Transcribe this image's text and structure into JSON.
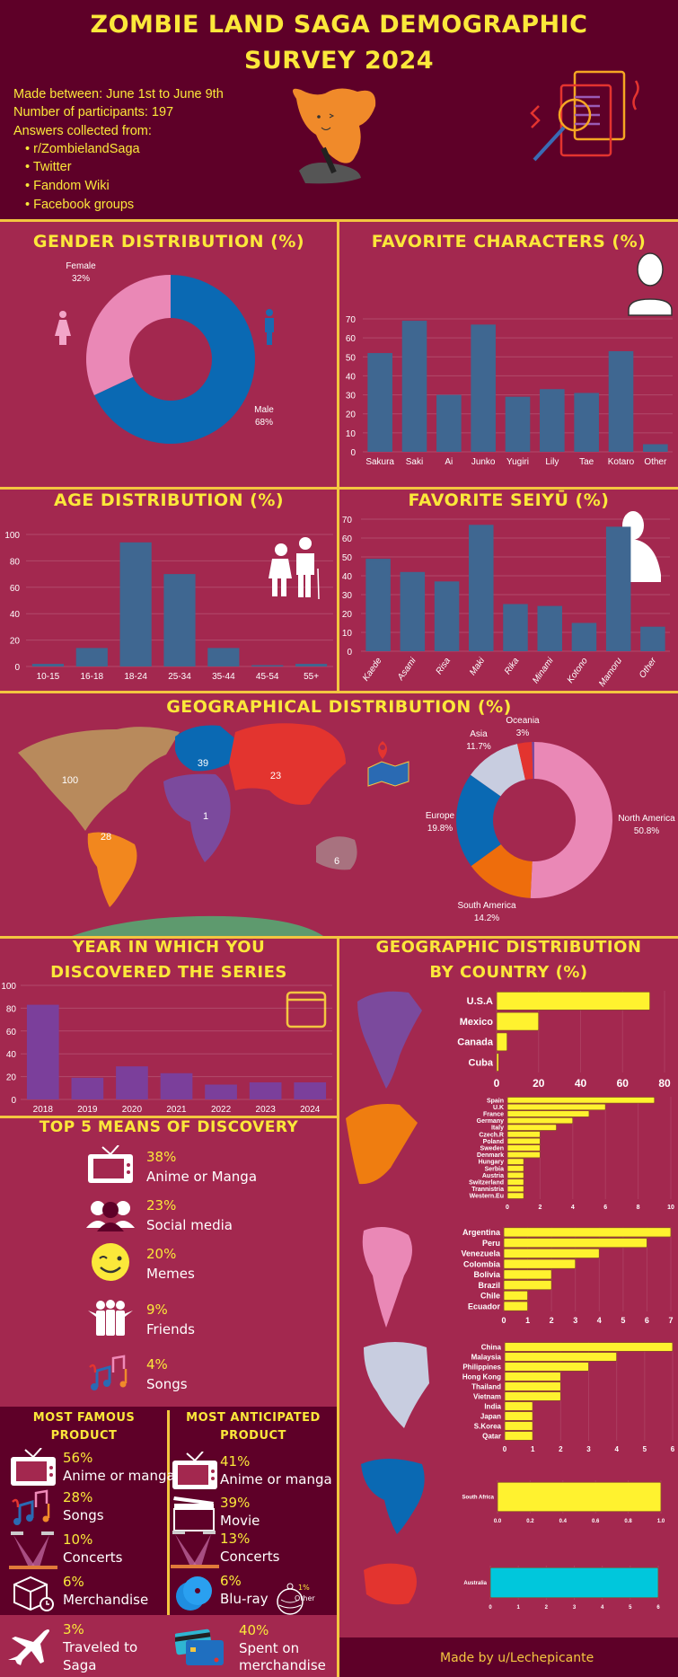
{
  "header": {
    "title_line1": "ZOMBIE LAND SAGA DEMOGRAPHIC",
    "title_line2": "SURVEY 2024",
    "made_between": "Made between: June 1st to June 9th",
    "participants": "Number of participants: 197",
    "collected_from": "Answers collected from:",
    "sources": [
      "r/ZombielandSaga",
      "Twitter",
      "Fandom Wiki",
      "Facebook groups"
    ]
  },
  "colors": {
    "background": "#a3284f",
    "dark_panel": "#5e0028",
    "title_yellow": "#fbe83a",
    "divider": "#f3c640",
    "bar_blue": "#3f6791",
    "bar_purple": "#7b3f9b",
    "country_bar": "#fff22f",
    "australia_bar": "#00c7dc"
  },
  "chart_data": [
    {
      "id": "gender",
      "title": "GENDER DISTRIBUTION (%)",
      "type": "pie",
      "donut": true,
      "slices": [
        {
          "name": "Male",
          "value": 68,
          "label": "68%",
          "color": "#0a69b3"
        },
        {
          "name": "Female",
          "value": 32,
          "label": "32%",
          "color": "#ea88b6"
        }
      ]
    },
    {
      "id": "characters",
      "title": "FAVORITE CHARACTERS (%)",
      "type": "bar",
      "categories": [
        "Sakura",
        "Saki",
        "Ai",
        "Junko",
        "Yugiri",
        "Lily",
        "Tae",
        "Kotaro",
        "Other"
      ],
      "values": [
        52,
        69,
        30,
        67,
        29,
        33,
        31,
        53,
        4
      ],
      "ylim": [
        0,
        70
      ],
      "yticks": [
        0,
        10,
        20,
        30,
        40,
        50,
        60,
        70
      ],
      "grid": true
    },
    {
      "id": "age",
      "title": "AGE DISTRIBUTION (%)",
      "type": "bar",
      "categories": [
        "10-15",
        "16-18",
        "18-24",
        "25-34",
        "35-44",
        "45-54",
        "55+"
      ],
      "values": [
        2,
        14,
        94,
        70,
        14,
        1,
        2
      ],
      "ylim": [
        0,
        110
      ],
      "yticks": [
        0,
        20,
        40,
        60,
        80,
        100
      ],
      "grid": true
    },
    {
      "id": "seiyu",
      "title": "FAVORITE SEIYŪ (%)",
      "type": "bar",
      "categories": [
        "Kaede",
        "Asami",
        "Risa",
        "Maki",
        "Rika",
        "Minami",
        "Kotono",
        "Mamoru",
        "Other"
      ],
      "values": [
        49,
        42,
        37,
        67,
        25,
        24,
        15,
        66,
        13
      ],
      "ylim": [
        0,
        70
      ],
      "yticks": [
        0,
        10,
        20,
        30,
        40,
        50,
        60,
        70
      ],
      "grid": true
    },
    {
      "id": "geo_map",
      "title": "GEOGRAPHICAL DISTRIBUTION (%)",
      "type": "map",
      "regions": [
        {
          "name": "North America",
          "value": "100",
          "color": "#b88a5c"
        },
        {
          "name": "South America",
          "value": "28",
          "color": "#f2871e"
        },
        {
          "name": "Europe",
          "value": "39",
          "color": "#0a69b3"
        },
        {
          "name": "Asia",
          "value": "23",
          "color": "#e3342f"
        },
        {
          "name": "Africa",
          "value": "1",
          "color": "#7b4a9d"
        },
        {
          "name": "Oceania",
          "value": "6",
          "color": "#a8727f"
        }
      ]
    },
    {
      "id": "geo_donut",
      "type": "pie",
      "donut": true,
      "slices": [
        {
          "name": "North America",
          "value": 50.8,
          "label": "50.8%",
          "color": "#ea88b6"
        },
        {
          "name": "South America",
          "value": 14.2,
          "label": "14.2%",
          "color": "#ee6d0c"
        },
        {
          "name": "Europe",
          "value": 19.8,
          "label": "19.8%",
          "color": "#0a69b3"
        },
        {
          "name": "Asia",
          "value": 11.7,
          "label": "11.7%",
          "color": "#c8cde0"
        },
        {
          "name": "Oceania",
          "value": 3,
          "label": "3%",
          "color": "#e3342f"
        },
        {
          "name": "",
          "value": 0.5,
          "label": "",
          "color": "#7b4a9d"
        }
      ]
    },
    {
      "id": "year",
      "title_line1": "YEAR IN WHICH YOU",
      "title_line2": "DISCOVERED THE SERIES",
      "type": "bar",
      "categories": [
        "2018",
        "2019",
        "2020",
        "2021",
        "2022",
        "2023",
        "2024"
      ],
      "values": [
        83,
        19,
        29,
        23,
        13,
        15,
        15
      ],
      "ylim": [
        0,
        100
      ],
      "yticks": [
        0,
        20,
        40,
        60,
        80,
        100
      ],
      "grid": true
    },
    {
      "id": "country_na",
      "title_line1": "GEOGRAPHIC DISTRIBUTION",
      "title_line2": "BY COUNTRY (%)",
      "type": "bar",
      "orientation": "horizontal",
      "categories": [
        "U.S.A",
        "Mexico",
        "Canada",
        "Cuba"
      ],
      "values": [
        73,
        20,
        5,
        1
      ],
      "xlim": [
        0,
        80
      ],
      "xticks": [
        "0",
        "20",
        "40",
        "60",
        "80"
      ]
    },
    {
      "id": "country_eu",
      "type": "bar",
      "orientation": "horizontal",
      "categories": [
        "Spain",
        "U.K",
        "France",
        "Germany",
        "Italy",
        "Czech.R",
        "Poland",
        "Sweden",
        "Denmark",
        "Hungary",
        "Serbia",
        "Austria",
        "Switzerland",
        "Trannistria",
        "Western.Eu"
      ],
      "values": [
        9,
        6,
        5,
        4,
        3,
        2,
        2,
        2,
        2,
        1,
        1,
        1,
        1,
        1,
        1
      ],
      "xlim": [
        0,
        10
      ],
      "xticks": [
        "0",
        "2",
        "4",
        "6",
        "8",
        "10"
      ]
    },
    {
      "id": "country_sa",
      "type": "bar",
      "orientation": "horizontal",
      "categories": [
        "Argentina",
        "Peru",
        "Venezuela",
        "Colombia",
        "Bolivia",
        "Brazil",
        "Chile",
        "Ecuador"
      ],
      "values": [
        7,
        6,
        4,
        3,
        2,
        2,
        1,
        1
      ],
      "xlim": [
        0,
        7
      ],
      "xticks": [
        "0",
        "1",
        "2",
        "3",
        "4",
        "5",
        "6",
        "7"
      ]
    },
    {
      "id": "country_asia",
      "type": "bar",
      "orientation": "horizontal",
      "categories": [
        "China",
        "Malaysia",
        "Philippines",
        "Hong Kong",
        "Thailand",
        "Vietnam",
        "India",
        "Japan",
        "S.Korea",
        "Qatar"
      ],
      "values": [
        6,
        4,
        3,
        2,
        2,
        2,
        1,
        1,
        1,
        1
      ],
      "xlim": [
        0,
        6
      ],
      "xticks": [
        "0",
        "1",
        "2",
        "3",
        "4",
        "5",
        "6"
      ]
    },
    {
      "id": "country_africa",
      "type": "bar",
      "orientation": "horizontal",
      "categories": [
        "South Africa"
      ],
      "values": [
        1
      ],
      "xlim": [
        0,
        1
      ],
      "xticks": [
        "0.0",
        "0.2",
        "0.4",
        "0.6",
        "0.8",
        "1.0"
      ]
    },
    {
      "id": "country_oceania",
      "type": "bar",
      "orientation": "horizontal",
      "categories": [
        "Australia"
      ],
      "values": [
        6
      ],
      "xlim": [
        0,
        6
      ],
      "xticks": [
        "0",
        "1",
        "2",
        "3",
        "4",
        "5",
        "6"
      ]
    }
  ],
  "discovery": {
    "title": "TOP 5 MEANS OF DISCOVERY",
    "items": [
      {
        "pct": "38%",
        "label": "Anime or Manga",
        "icon": "tv-icon"
      },
      {
        "pct": "23%",
        "label": "Social media",
        "icon": "people-icon"
      },
      {
        "pct": "20%",
        "label": "Memes",
        "icon": "winking-face-icon"
      },
      {
        "pct": "9%",
        "label": "Friends",
        "icon": "friends-group-icon"
      },
      {
        "pct": "4%",
        "label": "Songs",
        "icon": "music-notes-icon"
      }
    ]
  },
  "famous_product": {
    "title_line1": "MOST FAMOUS",
    "title_line2": "PRODUCT",
    "items": [
      {
        "pct": "56%",
        "label": "Anime or manga",
        "icon": "tv-icon"
      },
      {
        "pct": "28%",
        "label": "Songs",
        "icon": "music-notes-icon"
      },
      {
        "pct": "10%",
        "label": "Concerts",
        "icon": "stage-lights-icon"
      },
      {
        "pct": "6%",
        "label": "Merchandise",
        "icon": "package-icon"
      }
    ]
  },
  "anticipated_product": {
    "title_line1": "MOST ANTICIPATED",
    "title_line2": "PRODUCT",
    "items": [
      {
        "pct": "41%",
        "label": "Anime or manga",
        "icon": "tv-icon"
      },
      {
        "pct": "39%",
        "label": "Movie",
        "icon": "clapperboard-icon"
      },
      {
        "pct": "13%",
        "label": "Concerts",
        "icon": "stage-lights-icon"
      },
      {
        "pct": "6%",
        "label": "Blu-ray",
        "icon": "disc-icon"
      }
    ],
    "other": {
      "pct": "1%",
      "label": "Other",
      "icon": "ornament-icon"
    }
  },
  "extras": {
    "traveled": {
      "pct": "3%",
      "line1": "Traveled to",
      "line2": "Saga",
      "icon": "airplane-icon"
    },
    "spent": {
      "pct": "40%",
      "line1": "Spent on",
      "line2": "merchandise",
      "icon": "credit-cards-icon"
    }
  },
  "footer": {
    "credit": "Made by u/Lechepicante"
  }
}
